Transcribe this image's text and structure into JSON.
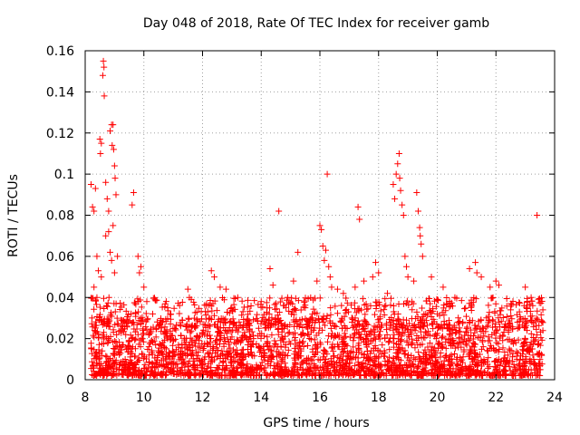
{
  "chart_data": {
    "type": "scatter",
    "title": "Day 048 of 2018, Rate Of TEC Index for receiver gamb",
    "xlabel": "GPS time / hours",
    "ylabel": "ROTI / TECUs",
    "xlim": [
      8,
      24
    ],
    "ylim": [
      0,
      0.16
    ],
    "xticks": [
      8,
      10,
      12,
      14,
      16,
      18,
      20,
      22,
      24
    ],
    "xtick_labels": [
      "8",
      "10",
      "12",
      "14",
      "16",
      "18",
      "20",
      "22",
      "24"
    ],
    "yticks": [
      0,
      0.02,
      0.04,
      0.06,
      0.08,
      0.1,
      0.12,
      0.14,
      0.16
    ],
    "ytick_labels": [
      "0",
      "0.02",
      "0.04",
      "0.06",
      "0.08",
      "0.1",
      "0.12",
      "0.14",
      "0.16"
    ],
    "grid": true,
    "legend": "none",
    "marker": "plus",
    "color": "#ff0000",
    "series": [
      {
        "name": "ROTI",
        "points": [
          [
            8.2,
            0.095
          ],
          [
            8.25,
            0.084
          ],
          [
            8.3,
            0.082
          ],
          [
            8.35,
            0.093
          ],
          [
            8.4,
            0.06
          ],
          [
            8.45,
            0.053
          ],
          [
            8.5,
            0.117
          ],
          [
            8.52,
            0.11
          ],
          [
            8.55,
            0.115
          ],
          [
            8.6,
            0.148
          ],
          [
            8.62,
            0.155
          ],
          [
            8.64,
            0.152
          ],
          [
            8.65,
            0.138
          ],
          [
            8.7,
            0.096
          ],
          [
            8.75,
            0.088
          ],
          [
            8.8,
            0.082
          ],
          [
            8.85,
            0.121
          ],
          [
            8.9,
            0.124
          ],
          [
            8.92,
            0.114
          ],
          [
            8.95,
            0.124
          ],
          [
            8.97,
            0.112
          ],
          [
            9.0,
            0.104
          ],
          [
            9.02,
            0.098
          ],
          [
            9.05,
            0.09
          ],
          [
            9.1,
            0.06
          ],
          [
            8.3,
            0.045
          ],
          [
            8.4,
            0.04
          ],
          [
            8.55,
            0.05
          ],
          [
            8.7,
            0.07
          ],
          [
            8.8,
            0.072
          ],
          [
            8.85,
            0.062
          ],
          [
            8.9,
            0.058
          ],
          [
            8.95,
            0.075
          ],
          [
            9.0,
            0.052
          ],
          [
            9.6,
            0.085
          ],
          [
            9.65,
            0.091
          ],
          [
            9.8,
            0.06
          ],
          [
            9.85,
            0.052
          ],
          [
            9.9,
            0.055
          ],
          [
            10.0,
            0.045
          ],
          [
            10.1,
            0.038
          ],
          [
            10.3,
            0.032
          ],
          [
            11.5,
            0.044
          ],
          [
            11.55,
            0.04
          ],
          [
            12.3,
            0.053
          ],
          [
            12.4,
            0.05
          ],
          [
            12.6,
            0.045
          ],
          [
            12.8,
            0.044
          ],
          [
            13.0,
            0.035
          ],
          [
            13.2,
            0.04
          ],
          [
            14.0,
            0.038
          ],
          [
            14.3,
            0.054
          ],
          [
            14.4,
            0.046
          ],
          [
            14.6,
            0.082
          ],
          [
            14.9,
            0.04
          ],
          [
            15.1,
            0.048
          ],
          [
            15.25,
            0.062
          ],
          [
            15.5,
            0.035
          ],
          [
            15.9,
            0.048
          ],
          [
            16.0,
            0.075
          ],
          [
            16.05,
            0.073
          ],
          [
            16.1,
            0.065
          ],
          [
            16.15,
            0.058
          ],
          [
            16.2,
            0.063
          ],
          [
            16.25,
            0.1
          ],
          [
            16.3,
            0.055
          ],
          [
            16.35,
            0.05
          ],
          [
            16.4,
            0.045
          ],
          [
            16.6,
            0.044
          ],
          [
            16.8,
            0.042
          ],
          [
            17.2,
            0.045
          ],
          [
            17.3,
            0.084
          ],
          [
            17.35,
            0.078
          ],
          [
            17.5,
            0.048
          ],
          [
            17.8,
            0.05
          ],
          [
            17.9,
            0.057
          ],
          [
            18.0,
            0.052
          ],
          [
            18.3,
            0.042
          ],
          [
            18.5,
            0.095
          ],
          [
            18.55,
            0.088
          ],
          [
            18.6,
            0.1
          ],
          [
            18.65,
            0.105
          ],
          [
            18.7,
            0.11
          ],
          [
            18.72,
            0.098
          ],
          [
            18.75,
            0.092
          ],
          [
            18.8,
            0.085
          ],
          [
            18.85,
            0.08
          ],
          [
            18.9,
            0.06
          ],
          [
            18.95,
            0.055
          ],
          [
            19.0,
            0.05
          ],
          [
            19.2,
            0.048
          ],
          [
            19.3,
            0.091
          ],
          [
            19.35,
            0.082
          ],
          [
            19.4,
            0.074
          ],
          [
            19.42,
            0.07
          ],
          [
            19.45,
            0.066
          ],
          [
            19.5,
            0.06
          ],
          [
            19.8,
            0.05
          ],
          [
            20.2,
            0.045
          ],
          [
            20.6,
            0.04
          ],
          [
            21.1,
            0.054
          ],
          [
            21.3,
            0.057
          ],
          [
            21.35,
            0.052
          ],
          [
            21.5,
            0.05
          ],
          [
            21.8,
            0.045
          ],
          [
            22.0,
            0.048
          ],
          [
            22.1,
            0.046
          ],
          [
            22.5,
            0.034
          ],
          [
            22.8,
            0.033
          ],
          [
            23.0,
            0.045
          ],
          [
            23.2,
            0.04
          ],
          [
            23.4,
            0.08
          ],
          [
            23.6,
            0.034
          ]
        ]
      }
    ],
    "background_cloud": {
      "x_range": [
        8.2,
        23.6
      ],
      "y_range": [
        0.002,
        0.03
      ],
      "description": "dense band of low ROTI values across all hours"
    }
  }
}
